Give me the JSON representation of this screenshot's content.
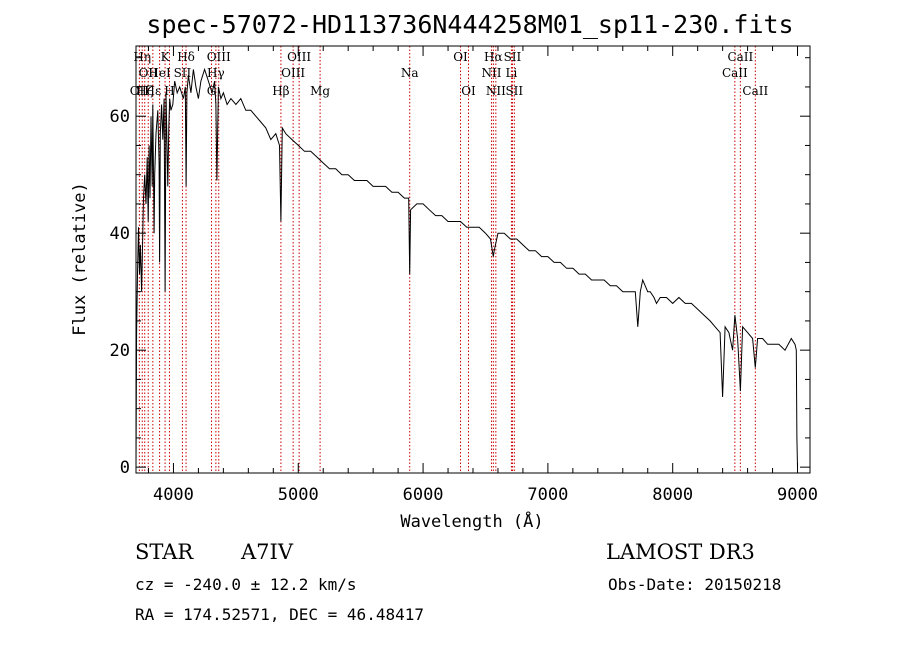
{
  "chart_data": {
    "type": "line",
    "title": "spec-57072-HD113736N444258M01_sp11-230.fits",
    "xlabel": "Wavelength (Å)",
    "ylabel": "Flux (relative)",
    "xlim": [
      3700,
      9100
    ],
    "ylim": [
      -1,
      72
    ],
    "xticks": [
      4000,
      5000,
      6000,
      7000,
      8000,
      9000
    ],
    "yticks": [
      0,
      20,
      40,
      60
    ],
    "grid": false,
    "series": [
      {
        "x": [
          3700,
          3705,
          3712,
          3720,
          3728,
          3735,
          3745,
          3760,
          3770,
          3780,
          3790,
          3798,
          3805,
          3812,
          3820,
          3830,
          3835,
          3845,
          3850,
          3860,
          3875,
          3885,
          3889,
          3895,
          3905,
          3915,
          3925,
          3933,
          3940,
          3955,
          3963,
          3970,
          3980,
          3995,
          4010,
          4030,
          4050,
          4080,
          4095,
          4101,
          4108,
          4120,
          4140,
          4160,
          4180,
          4200,
          4220,
          4250,
          4280,
          4310,
          4330,
          4340,
          4348,
          4360,
          4380,
          4400,
          4430,
          4460,
          4500,
          4540,
          4580,
          4620,
          4660,
          4700,
          4740,
          4780,
          4820,
          4850,
          4861,
          4872,
          4900,
          4950,
          5000,
          5050,
          5100,
          5150,
          5200,
          5250,
          5300,
          5350,
          5400,
          5450,
          5500,
          5550,
          5600,
          5650,
          5700,
          5750,
          5800,
          5850,
          5885,
          5893,
          5900,
          5950,
          6000,
          6050,
          6100,
          6150,
          6200,
          6250,
          6300,
          6350,
          6400,
          6450,
          6500,
          6540,
          6555,
          6563,
          6570,
          6600,
          6650,
          6700,
          6750,
          6800,
          6850,
          6900,
          6950,
          7000,
          7050,
          7100,
          7150,
          7200,
          7250,
          7300,
          7350,
          7400,
          7450,
          7500,
          7550,
          7600,
          7650,
          7700,
          7720,
          7740,
          7760,
          7780,
          7800,
          7820,
          7850,
          7870,
          7900,
          7950,
          8000,
          8050,
          8100,
          8150,
          8200,
          8250,
          8300,
          8340,
          8380,
          8400,
          8420,
          8450,
          8480,
          8498,
          8520,
          8542,
          8560,
          8600,
          8640,
          8662,
          8680,
          8720,
          8760,
          8800,
          8850,
          8900,
          8950,
          8980,
          8990,
          8995,
          9000
        ],
        "values": [
          0,
          23,
          33,
          41,
          33,
          38,
          30,
          46,
          50,
          45,
          53,
          42,
          55,
          46,
          60,
          48,
          62,
          40,
          50,
          57,
          61,
          52,
          35,
          57,
          62,
          56,
          63,
          30,
          64,
          48,
          58,
          63,
          61,
          62,
          66,
          64,
          65,
          63,
          65,
          48,
          64,
          67,
          64,
          68,
          65,
          63,
          66,
          68,
          66,
          64,
          66,
          62,
          49,
          65,
          63,
          64,
          62,
          63,
          62,
          63,
          61,
          61,
          60,
          59,
          58,
          56,
          57,
          55,
          42,
          58,
          57,
          56,
          55,
          54,
          54,
          53,
          52,
          51,
          51,
          50,
          50,
          49,
          49,
          49,
          48,
          48,
          48,
          47,
          47,
          46,
          46,
          33,
          44,
          45,
          45,
          44,
          43,
          43,
          42,
          42,
          42,
          41,
          41,
          41,
          40,
          39,
          37,
          36,
          37,
          40,
          40,
          39,
          39,
          38,
          37,
          37,
          36,
          36,
          35,
          35,
          34,
          34,
          33,
          33,
          32,
          32,
          32,
          31,
          31,
          30,
          30,
          30,
          24,
          30,
          32,
          31,
          30,
          30,
          29,
          28,
          29,
          29,
          28,
          29,
          28,
          28,
          27,
          26,
          25,
          24,
          23,
          12,
          24,
          23,
          20,
          26,
          22,
          13,
          24,
          23,
          22,
          17,
          22,
          22,
          21,
          21,
          21,
          20,
          22,
          21,
          20,
          5,
          0
        ]
      }
    ],
    "line_markers": [
      {
        "label": "OII",
        "x": 3727,
        "row": 3
      },
      {
        "label": "Hη",
        "x": 3750,
        "row": 1
      },
      {
        "label": "Hζ",
        "x": 3770,
        "row": 3
      },
      {
        "label": "OII",
        "x": 3798,
        "row": 2
      },
      {
        "label": "Hε",
        "x": 3835,
        "row": 3
      },
      {
        "label": "HeI",
        "x": 3889,
        "row": 2
      },
      {
        "label": "K",
        "x": 3933,
        "row": 1
      },
      {
        "label": "H",
        "x": 3968,
        "row": 3
      },
      {
        "label": "Hδ",
        "x": 4101,
        "row": 1
      },
      {
        "label": "SII",
        "x": 4072,
        "row": 2
      },
      {
        "label": "G",
        "x": 4305,
        "row": 3
      },
      {
        "label": "OIII",
        "x": 4363,
        "row": 1
      },
      {
        "label": "Hγ",
        "x": 4340,
        "row": 2
      },
      {
        "label": "Hβ",
        "x": 4861,
        "row": 3
      },
      {
        "label": "OIII",
        "x": 4959,
        "row": 2
      },
      {
        "label": "OIII",
        "x": 5007,
        "row": 1
      },
      {
        "label": "Mg",
        "x": 5175,
        "row": 3
      },
      {
        "label": "Na",
        "x": 5893,
        "row": 2
      },
      {
        "label": "OI",
        "x": 6300,
        "row": 1
      },
      {
        "label": "OI",
        "x": 6364,
        "row": 3
      },
      {
        "label": "NII",
        "x": 6548,
        "row": 2
      },
      {
        "label": "Hα",
        "x": 6563,
        "row": 1
      },
      {
        "label": "NII",
        "x": 6583,
        "row": 3
      },
      {
        "label": "SII",
        "x": 6716,
        "row": 1
      },
      {
        "label": "Li",
        "x": 6708,
        "row": 2
      },
      {
        "label": "SII",
        "x": 6731,
        "row": 3
      },
      {
        "label": "CaII",
        "x": 8498,
        "row": 2
      },
      {
        "label": "CaII",
        "x": 8542,
        "row": 1
      },
      {
        "label": "CaII",
        "x": 8662,
        "row": 3
      }
    ],
    "marker_color": "#cc0000"
  },
  "info": {
    "object_class": "STAR",
    "subclass": "A7IV",
    "survey": "LAMOST DR3",
    "redshift": "cz = -240.0 ± 12.2 km/s",
    "obs_date": "Obs-Date: 20150218",
    "coords": "RA = 174.52571, DEC =  46.48417"
  }
}
